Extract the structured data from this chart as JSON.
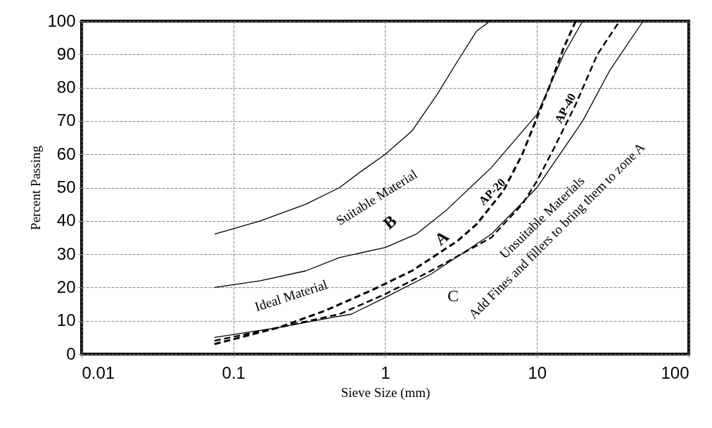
{
  "chart_data": {
    "type": "line",
    "xlabel": "Sieve Size (mm)",
    "ylabel": "Percent Passing",
    "log": "x",
    "xlim": [
      0.01,
      100
    ],
    "xticks": [
      0.01,
      0.1,
      1,
      10,
      100
    ],
    "ylim": [
      0,
      100
    ],
    "yticks": [
      0,
      10,
      20,
      30,
      40,
      50,
      60,
      70,
      80,
      90,
      100
    ],
    "grid": true,
    "marker": "none",
    "series": [
      {
        "color": "#000000",
        "line_style": "solid",
        "x": [
          0.075,
          0.15,
          0.3,
          0.5,
          0.7,
          1,
          1.5,
          2.2,
          3,
          4,
          4.9
        ],
        "values": [
          36,
          40,
          45,
          50,
          55,
          60,
          67,
          78,
          88,
          97,
          100
        ]
      },
      {
        "color": "#000000",
        "line_style": "solid",
        "x": [
          0.075,
          0.15,
          0.3,
          0.5,
          1,
          1.6,
          2.5,
          5,
          10,
          15,
          20
        ],
        "values": [
          20,
          22,
          25,
          29,
          32,
          36,
          43,
          56,
          72,
          90,
          100
        ]
      },
      {
        "color": "#000000",
        "line_style": "solid",
        "x": [
          0.075,
          0.2,
          0.45,
          0.6,
          1,
          2,
          5,
          10,
          20,
          30,
          50
        ],
        "values": [
          5,
          8,
          11,
          12,
          17,
          24,
          36,
          50,
          70,
          85,
          100
        ]
      },
      {
        "name": "AP-20",
        "color": "#000000",
        "line_style": "dashed",
        "x": [
          0.075,
          0.2,
          0.4,
          0.8,
          1.5,
          3,
          4,
          6,
          8,
          12,
          15,
          18
        ],
        "values": [
          3,
          8,
          13,
          19,
          25,
          34,
          39,
          49,
          60,
          80,
          92,
          100
        ]
      },
      {
        "name": "AP-40",
        "color": "#000000",
        "line_style": "dashed",
        "x": [
          0.075,
          0.2,
          0.5,
          1,
          2,
          5,
          8,
          10,
          13,
          18,
          25,
          35
        ],
        "values": [
          4,
          8,
          12,
          18,
          25,
          35,
          45,
          52,
          62,
          75,
          90,
          100
        ]
      }
    ],
    "annotations": [
      "Suitable Material",
      "Ideal Material",
      "B",
      "A",
      "C",
      "Unsuitable Materials",
      "Add Fines and fillers to bring them to zone A"
    ]
  }
}
